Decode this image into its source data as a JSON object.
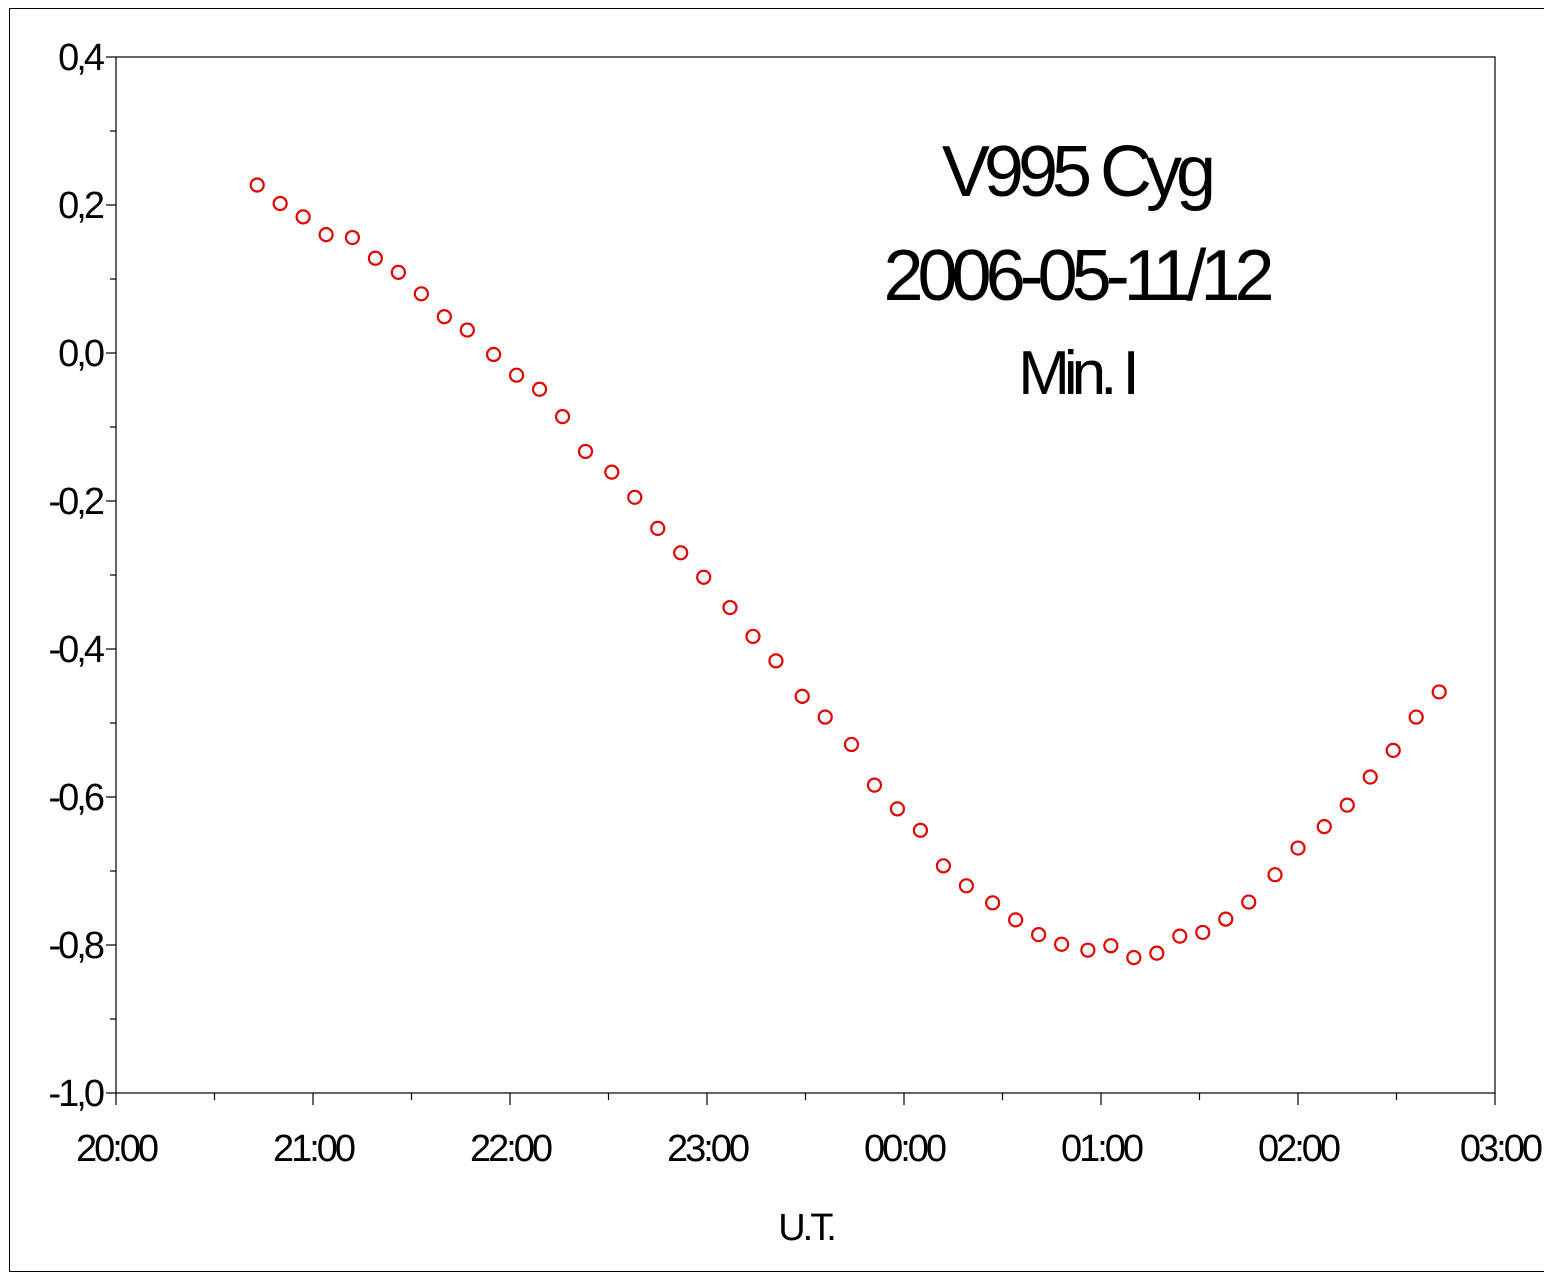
{
  "chart_data": {
    "type": "scatter",
    "title_lines": [
      "V995 Cyg",
      "2006-05-11/12",
      "Min. I"
    ],
    "xlabel": "U.T.",
    "ylabel": "",
    "x_tick_labels": [
      "20:00",
      "21:00",
      "22:00",
      "23:00",
      "00:00",
      "01:00",
      "02:00",
      "03:00"
    ],
    "y_tick_labels": [
      "0,4",
      "0,2",
      "0,0",
      "-0,2",
      "-0,4",
      "-0,6",
      "-0,8",
      "-1,0"
    ],
    "ylim": [
      -1.0,
      0.4
    ],
    "xlim": [
      "20:00",
      "03:00"
    ],
    "grid": false,
    "marker_color": "#e00000",
    "series": [
      {
        "marker": "open-circle",
        "points": [
          [
            "20:43",
            0.227
          ],
          [
            "20:50",
            0.202
          ],
          [
            "20:57",
            0.184
          ],
          [
            "21:04",
            0.16
          ],
          [
            "21:12",
            0.156
          ],
          [
            "21:19",
            0.128
          ],
          [
            "21:26",
            0.109
          ],
          [
            "21:33",
            0.08
          ],
          [
            "21:40",
            0.049
          ],
          [
            "21:47",
            0.031
          ],
          [
            "21:55",
            -0.002
          ],
          [
            "22:02",
            -0.03
          ],
          [
            "22:09",
            -0.049
          ],
          [
            "22:16",
            -0.086
          ],
          [
            "22:23",
            -0.133
          ],
          [
            "22:31",
            -0.161
          ],
          [
            "22:38",
            -0.195
          ],
          [
            "22:45",
            -0.237
          ],
          [
            "22:52",
            -0.27
          ],
          [
            "22:59",
            -0.303
          ],
          [
            "23:07",
            -0.344
          ],
          [
            "23:14",
            -0.383
          ],
          [
            "23:21",
            -0.416
          ],
          [
            "23:29",
            -0.464
          ],
          [
            "23:36",
            -0.492
          ],
          [
            "23:44",
            -0.529
          ],
          [
            "23:51",
            -0.584
          ],
          [
            "23:58",
            -0.616
          ],
          [
            "00:05",
            -0.645
          ],
          [
            "00:12",
            -0.693
          ],
          [
            "00:19",
            -0.72
          ],
          [
            "00:27",
            -0.743
          ],
          [
            "00:34",
            -0.766
          ],
          [
            "00:41",
            -0.786
          ],
          [
            "00:48",
            -0.799
          ],
          [
            "00:56",
            -0.807
          ],
          [
            "01:03",
            -0.801
          ],
          [
            "01:10",
            -0.817
          ],
          [
            "01:17",
            -0.811
          ],
          [
            "01:24",
            -0.788
          ],
          [
            "01:31",
            -0.783
          ],
          [
            "01:38",
            -0.765
          ],
          [
            "01:45",
            -0.742
          ],
          [
            "01:53",
            -0.705
          ],
          [
            "02:00",
            -0.669
          ],
          [
            "02:08",
            -0.64
          ],
          [
            "02:15",
            -0.611
          ],
          [
            "02:22",
            -0.573
          ],
          [
            "02:29",
            -0.537
          ],
          [
            "02:36",
            -0.492
          ],
          [
            "02:43",
            -0.458
          ]
        ]
      }
    ]
  }
}
